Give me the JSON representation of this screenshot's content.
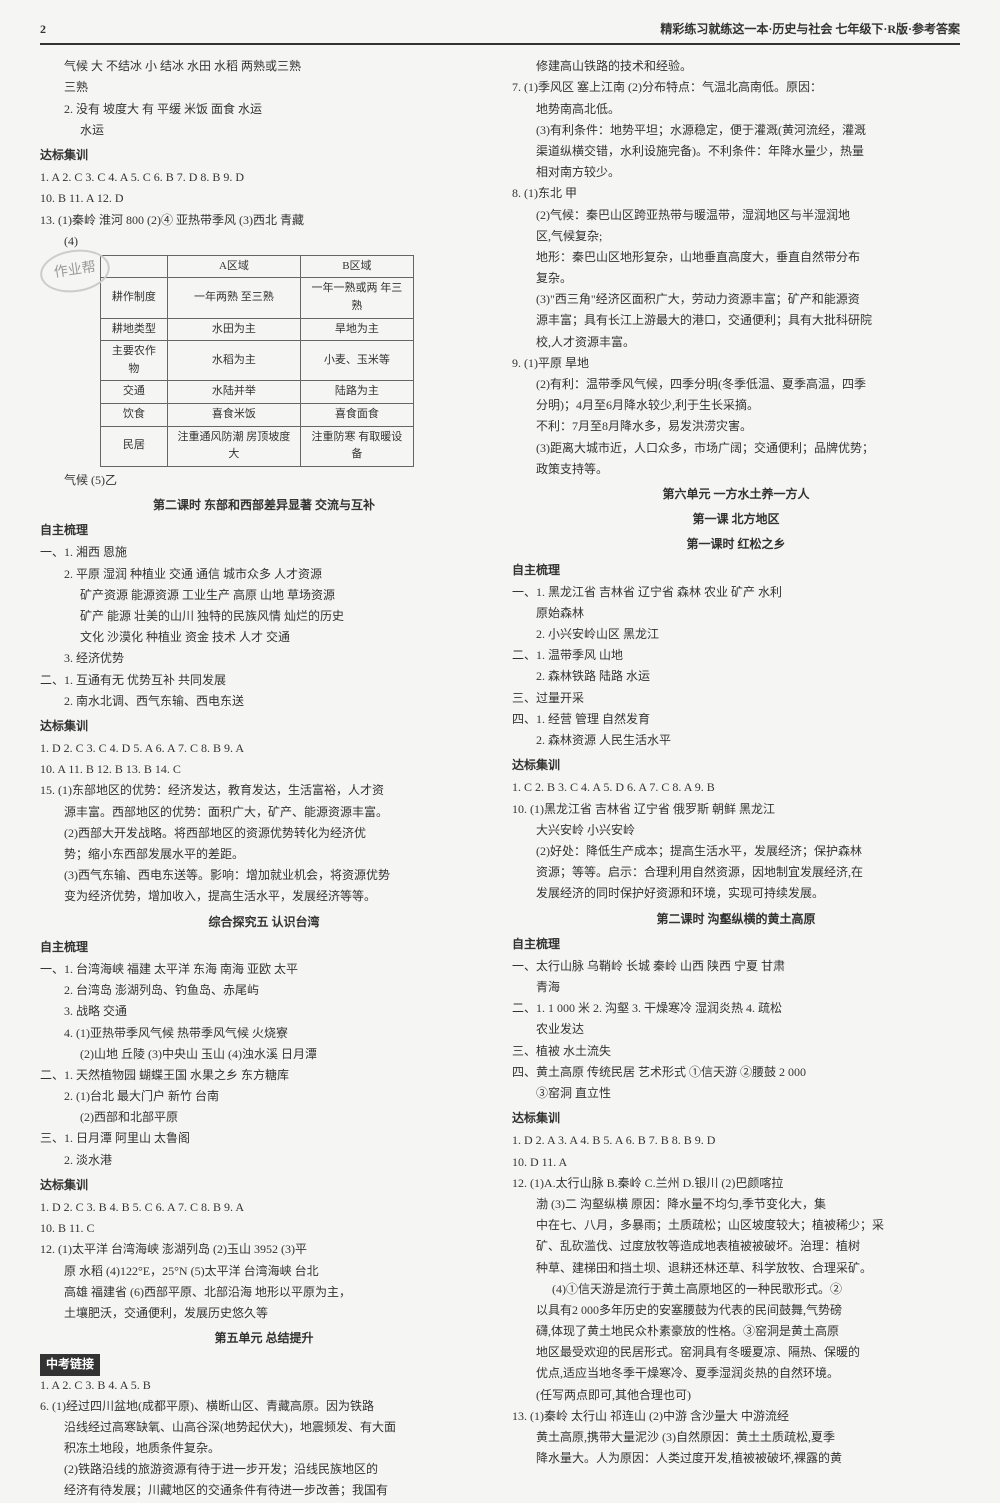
{
  "header": {
    "page_num": "2",
    "title": "精彩练习就练这一本·历史与社会  七年级下·R版·参考答案"
  },
  "left": {
    "l1": "气候  大  不结冰  小  结冰  水田  水稻  两熟或三熟",
    "l2": "三熟",
    "l3": "2. 没有  坡度大  有  平缓  米饭  面食  水运",
    "l4": "水运",
    "h_dabiao": "达标集训",
    "dabiao1": "1. A  2. C  3. C  4. A  5. C  6. B  7. D  8. B  9. D",
    "dabiao2": "10. B  11. A  12. D",
    "dabiao3": "13. (1)秦岭  淮河  800  (2)④  亚热带季风  (3)西北  青藏",
    "dabiao4": "(4)",
    "table": {
      "headers": [
        "",
        "A区域",
        "B区域"
      ],
      "rows": [
        [
          "耕作制度",
          "一年两熟\n至三熟",
          "一年一熟或两\n年三熟"
        ],
        [
          "耕地类型",
          "水田为主",
          "旱地为主"
        ],
        [
          "主要农作物",
          "水稻为主",
          "小麦、玉米等"
        ],
        [
          "交通",
          "水陆并举",
          "陆路为主"
        ],
        [
          "饮食",
          "喜食米饭",
          "喜食面食"
        ],
        [
          "民居",
          "注重通风防潮\n房顶坡度大",
          "注重防寒\n有取暖设备"
        ]
      ]
    },
    "qihou": "气候  (5)乙",
    "title_l2": "第二课时  东部和西部差异显著  交流与互补",
    "h_zizhu": "自主梳理",
    "z1": "一、1. 湘西  恩施",
    "z2": "2. 平原  湿润  种植业  交通  通信  城市众多  人才资源",
    "z3": "矿产资源  能源资源  工业生产  高原  山地  草场资源",
    "z4": "矿产  能源  壮美的山川  独特的民族风情  灿烂的历史",
    "z5": "文化  沙漠化  种植业  资金  技术  人才  交通",
    "z6": "3. 经济优势",
    "z7": "二、1. 互通有无  优势互补  共同发展",
    "z8": "2. 南水北调、西气东输、西电东送",
    "h_dabiao2": "达标集训",
    "db1": "1. D  2. C  3. C  4. D  5. A  6. A  7. C  8. B  9. A",
    "db2": "10. A  11. B  12. B  13. B  14. C",
    "db3": "15. (1)东部地区的优势：经济发达，教育发达，生活富裕，人才资",
    "db4": "源丰富。西部地区的优势：面积广大，矿产、能源资源丰富。",
    "db5": "(2)西部大开发战略。将西部地区的资源优势转化为经济优",
    "db6": "势；缩小东西部发展水平的差距。",
    "db7": "(3)西气东输、西电东送等。影响：增加就业机会，将资源优势",
    "db8": "变为经济优势，增加收入，提高生活水平，发展经济等等。",
    "title_tanjiu5": "综合探究五  认识台湾",
    "h_zizhu2": "自主梳理",
    "tw1": "一、1. 台湾海峡  福建  太平洋  东海  南海  亚欧  太平",
    "tw2": "2. 台湾岛  澎湖列岛、钓鱼岛、赤尾屿",
    "tw3": "3. 战略  交通",
    "tw4": "4. (1)亚热带季风气候  热带季风气候  火烧寮",
    "tw5": "(2)山地  丘陵  (3)中央山  玉山  (4)浊水溪  日月潭",
    "tw6": "二、1. 天然植物园  蝴蝶王国  水果之乡  东方糖库",
    "tw7": "2. (1)台北  最大门户  新竹  台南",
    "tw8": "(2)西部和北部平原",
    "tw9": "三、1. 日月潭  阿里山  太鲁阁",
    "tw10": "2. 淡水港",
    "h_dabiao3": "达标集训",
    "twd1": "1. D  2. C  3. B  4. B  5. C  6. A  7. C  8. B  9. A",
    "twd2": "10. B  11. C",
    "twd3": "12. (1)太平洋  台湾海峡  澎湖列岛  (2)玉山  3952  (3)平",
    "twd4": "原  水稻  (4)122°E，25°N  (5)太平洋  台湾海峡  台北",
    "twd5": "高雄  福建省  (6)西部平原、北部沿海  地形以平原为主，",
    "twd6": "土壤肥沃，交通便利，发展历史悠久等",
    "title_unit5": "第五单元  总结提升",
    "h_zhongkao": "中考链接",
    "zk1": "1. A  2. C  3. B  4. A  5. B",
    "zk2": "6. (1)经过四川盆地(成都平原)、横断山区、青藏高原。因为铁路",
    "zk3": "沿线经过高寒缺氧、山高谷深(地势起伏大)，地震频发、有大面",
    "zk4": "积冻土地段，地质条件复杂。",
    "zk5": "(2)铁路沿线的旅游资源有待于进一步开发；沿线民族地区的",
    "zk6": "经济有待发展；川藏地区的交通条件有待进一步改善；我国有"
  },
  "right": {
    "r1": "修建高山铁路的技术和经验。",
    "r2": "7. (1)季风区  塞上江南  (2)分布特点：气温北高南低。原因：",
    "r3": "地势南高北低。",
    "r4": "(3)有利条件：地势平坦；水源稳定，便于灌溉(黄河流经，灌溉",
    "r5": "渠道纵横交错，水利设施完备)。不利条件：年降水量少，热量",
    "r6": "相对南方较少。",
    "r7": "8. (1)东北  甲",
    "r8": "(2)气候：秦巴山区跨亚热带与暖温带，湿润地区与半湿润地",
    "r9": "区,气候复杂;",
    "r10": "地形：秦巴山区地形复杂，山地垂直高度大，垂直自然带分布",
    "r11": "复杂。",
    "r12": "(3)\"西三角\"经济区面积广大，劳动力资源丰富；矿产和能源资",
    "r13": "源丰富；具有长江上游最大的港口，交通便利；具有大批科研院",
    "r14": "校,人才资源丰富。",
    "r15": "9. (1)平原  旱地",
    "r16": "(2)有利：温带季风气候，四季分明(冬季低温、夏季高温，四季",
    "r17": "分明)；4月至6月降水较少,利于生长采摘。",
    "r18": "不利：7月至8月降水多，易发洪涝灾害。",
    "r19": "(3)距离大城市近，人口众多，市场广阔；交通便利；品牌优势；",
    "r20": "政策支持等。",
    "title_unit6": "第六单元  一方水土养一方人",
    "title_lesson1": "第一课  北方地区",
    "title_keshi1": "第一课时  红松之乡",
    "h_zizhu_r": "自主梳理",
    "hz1": "一、1. 黑龙江省  吉林省  辽宁省  森林  农业  矿产  水利",
    "hz2": "原始森林",
    "hz3": "2. 小兴安岭山区  黑龙江",
    "hz4": "二、1. 温带季风  山地",
    "hz5": "2. 森林铁路  陆路  水运",
    "hz6": "三、过量开采",
    "hz7": "四、1. 经营  管理  自然发育",
    "hz8": "2. 森林资源  人民生活水平",
    "h_dabiao_r": "达标集训",
    "hd1": "1. C  2. B  3. C  4. A  5. D  6. A  7. C  8. A  9. B",
    "hd2": "10. (1)黑龙江省  吉林省  辽宁省  俄罗斯  朝鲜  黑龙江",
    "hd3": "大兴安岭  小兴安岭",
    "hd4": "(2)好处：降低生产成本；提高生活水平，发展经济；保护森林",
    "hd5": "资源；等等。启示：合理利用自然资源，因地制宜发展经济,在",
    "hd6": "发展经济的同时保护好资源和环境，实现可持续发展。",
    "title_keshi2": "第二课时  沟壑纵横的黄土高原",
    "h_zizhu_r2": "自主梳理",
    "ht1": "一、太行山脉  乌鞘岭  长城  秦岭  山西  陕西  宁夏  甘肃",
    "ht2": "青海",
    "ht3": "二、1. 1 000 米  2. 沟壑  3. 干燥寒冷  湿润炎热  4. 疏松",
    "ht4": "农业发达",
    "ht5": "三、植被  水土流失",
    "ht6": "四、黄土高原  传统民居  艺术形式  ①信天游  ②腰鼓  2 000",
    "ht7": "③窑洞  直立性",
    "h_dabiao_r2": "达标集训",
    "htd1": "1. D  2. A  3. A  4. B  5. A  6. B  7. B  8. B  9. D",
    "htd2": "10. D  11. A",
    "htd3": "12. (1)A.太行山脉  B.秦岭  C.兰州  D.银川  (2)巴颜喀拉",
    "htd4": "渤  (3)二  沟壑纵横  原因：降水量不均匀,季节变化大，集",
    "htd5": "中在七、八月，多暴雨；土质疏松；山区坡度较大；植被稀少；采",
    "htd6": "矿、乱砍滥伐、过度放牧等造成地表植被被破坏。治理：植树",
    "htd7": "种草、建梯田和挡土坝、退耕还林还草、科学放牧、合理采矿。",
    "htd8": "(4)①信天游是流行于黄土高原地区的一种民歌形式。②",
    "htd9": "以具有2 000多年历史的安塞腰鼓为代表的民间鼓舞,气势磅",
    "htd10": "礴,体现了黄土地民众朴素豪放的性格。③窑洞是黄土高原",
    "htd11": "地区最受欢迎的民居形式。窑洞具有冬暖夏凉、隔热、保暖的",
    "htd12": "优点,适应当地冬季干燥寒冷、夏季湿润炎热的自然环境。",
    "htd13": "(任写两点即可,其他合理也可)",
    "htd14": "13. (1)秦岭  太行山  祁连山  (2)中游  含沙量大  中游流经",
    "htd15": "黄土高原,携带大量泥沙  (3)自然原因：黄土土质疏松,夏季",
    "htd16": "降水量大。人为原因：人类过度开发,植被被破坏,裸露的黄"
  },
  "stamp": "作业帮"
}
